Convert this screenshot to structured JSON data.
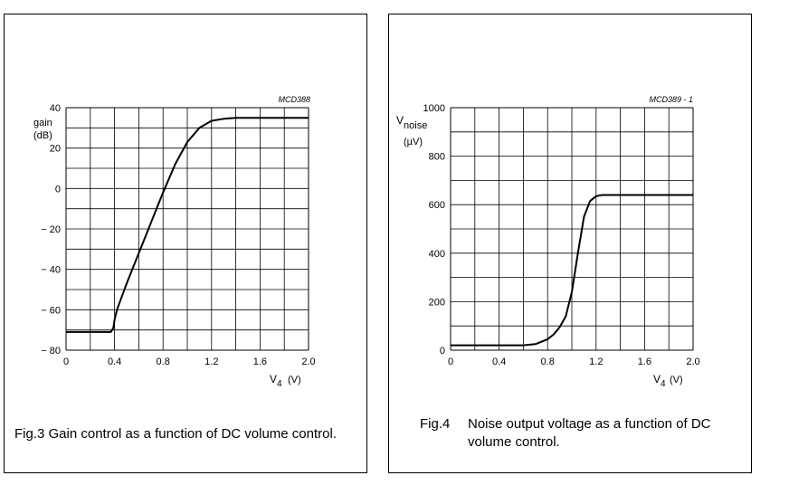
{
  "chart_data": [
    {
      "type": "line",
      "code": "MCD388",
      "ylabel": "gain",
      "yunit": "(dB)",
      "xlabel_main": "V",
      "xlabel_sub": "4",
      "xunit": "(V)",
      "xlim": [
        0,
        2.0
      ],
      "ylim": [
        -80,
        40
      ],
      "xticks": [
        "0",
        "0.4",
        "0.8",
        "1.2",
        "1.6",
        "2.0"
      ],
      "yticks": [
        "40",
        "20",
        "0",
        "− 20",
        "− 40",
        "− 60",
        "− 80"
      ],
      "grid": true,
      "series": [
        {
          "x": [
            0,
            0.2,
            0.37,
            0.39,
            0.4,
            0.42,
            0.5,
            0.6,
            0.7,
            0.8,
            0.9,
            1.0,
            1.1,
            1.2,
            1.3,
            1.4,
            1.6,
            2.0
          ],
          "y": [
            -71,
            -71,
            -71,
            -69,
            -65,
            -60,
            -47,
            -32,
            -17,
            -2,
            12,
            23,
            30,
            33.5,
            34.5,
            35,
            35,
            35
          ]
        }
      ]
    },
    {
      "type": "line",
      "code": "MCD389 - 1",
      "ylabel_main": "V",
      "ylabel_sub": "noise",
      "yunit": "(µV)",
      "xlabel_main": "V",
      "xlabel_sub": "4",
      "xunit": "(V)",
      "xlim": [
        0,
        2.0
      ],
      "ylim": [
        0,
        1000
      ],
      "xticks": [
        "0",
        "0.4",
        "0.8",
        "1.2",
        "1.6",
        "2.0"
      ],
      "yticks": [
        "1000",
        "800",
        "600",
        "400",
        "200",
        "0"
      ],
      "grid": true,
      "series": [
        {
          "x": [
            0,
            0.3,
            0.6,
            0.7,
            0.8,
            0.85,
            0.9,
            0.95,
            1.0,
            1.05,
            1.1,
            1.15,
            1.2,
            1.25,
            1.3,
            1.4,
            1.6,
            2.0
          ],
          "y": [
            20,
            20,
            20,
            25,
            45,
            65,
            95,
            140,
            240,
            400,
            550,
            615,
            635,
            640,
            640,
            640,
            640,
            640
          ]
        }
      ]
    }
  ],
  "captions": {
    "fig3": "Fig.3  Gain control as a function of DC volume control.",
    "fig4_num": "Fig.4",
    "fig4_text": "Noise output voltage as a function of DC volume control."
  }
}
